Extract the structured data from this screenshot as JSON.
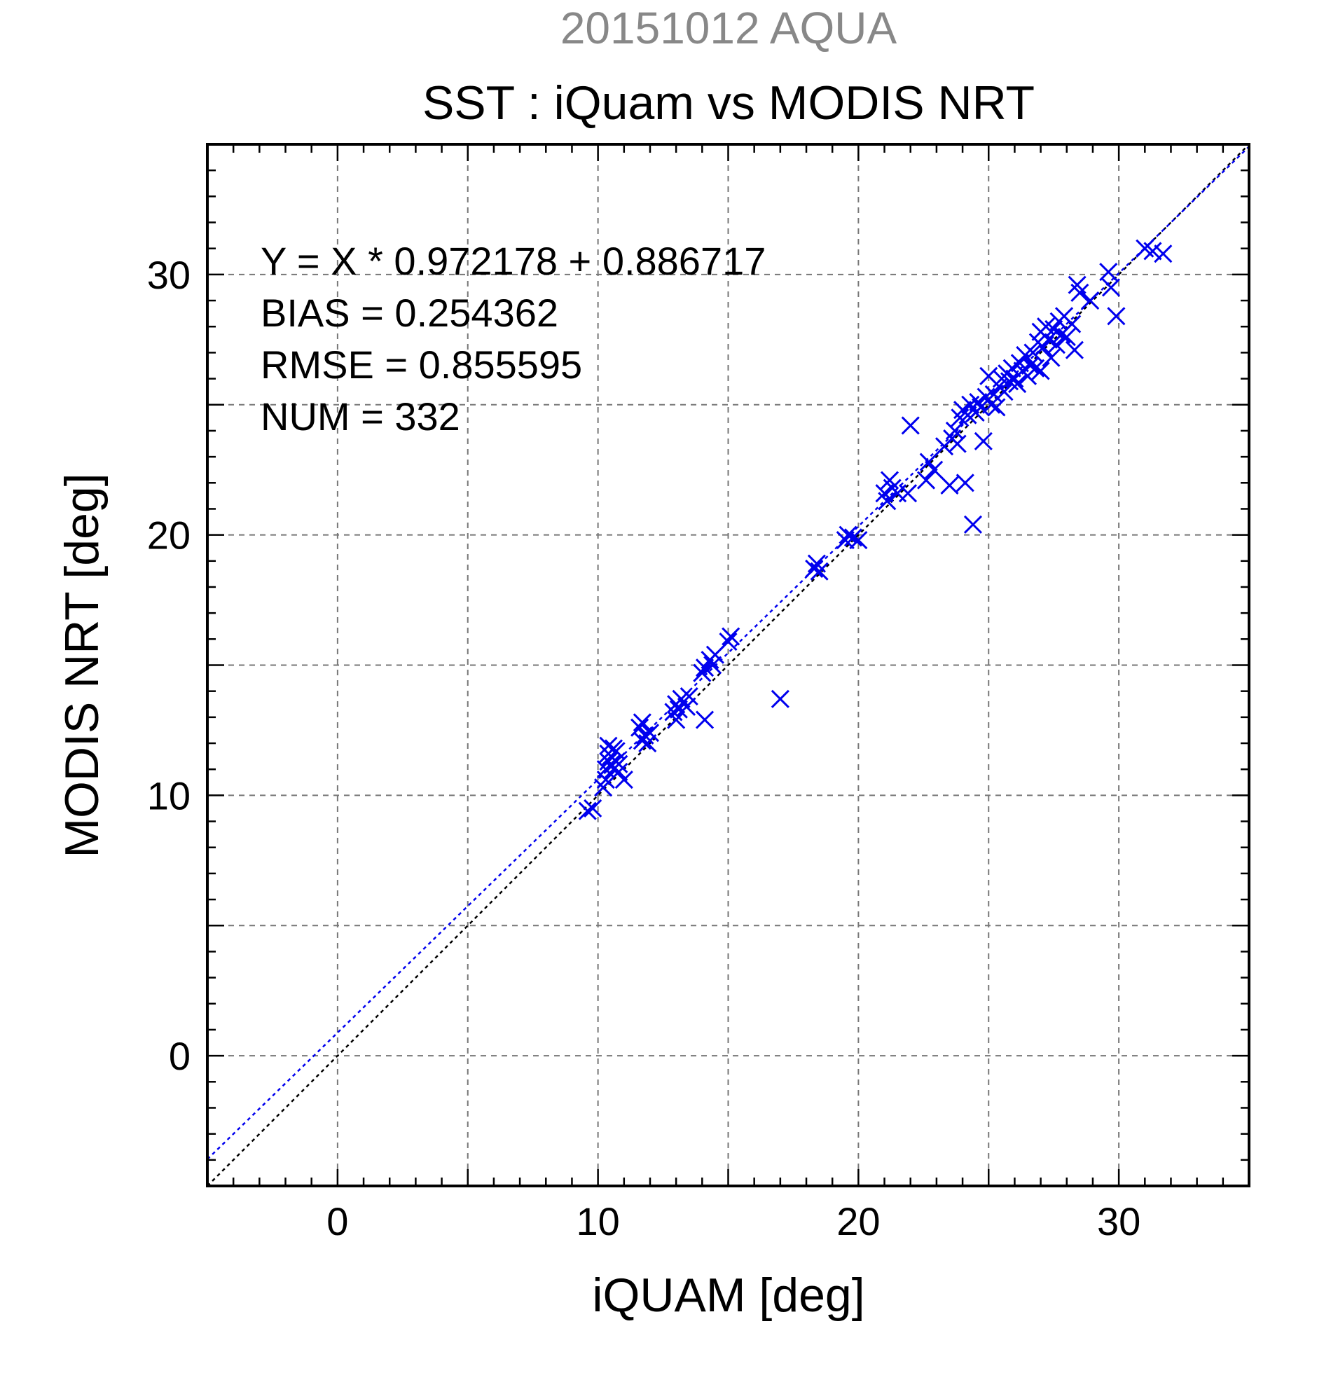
{
  "chart_data": {
    "type": "scatter",
    "date_title": "20151012 AQUA",
    "title": "SST : iQuam vs MODIS NRT",
    "xlabel": "iQUAM [deg]",
    "ylabel": "MODIS NRT [deg]",
    "xlim": [
      -5,
      35
    ],
    "ylim": [
      -5,
      35
    ],
    "xticks": [
      0,
      10,
      20,
      30
    ],
    "yticks": [
      0,
      10,
      20,
      30
    ],
    "grid": true,
    "stats": [
      "Y = X * 0.972178 + 0.886717",
      "BIAS = 0.254362",
      "RMSE = 0.855595",
      "NUM = 332"
    ],
    "fit": {
      "slope": 0.972178,
      "intercept": 0.886717
    },
    "colors": {
      "points": "#0000ee",
      "fit_line": "#0000ee",
      "one_to_one": "#000000",
      "date_title": "#888888"
    },
    "points": [
      [
        9.6,
        9.4
      ],
      [
        9.8,
        9.5
      ],
      [
        10.2,
        10.3
      ],
      [
        10.3,
        10.6
      ],
      [
        10.3,
        11.0
      ],
      [
        10.4,
        11.3
      ],
      [
        10.4,
        11.6
      ],
      [
        10.4,
        11.9
      ],
      [
        10.5,
        11.2
      ],
      [
        10.5,
        11.5
      ],
      [
        10.6,
        11.8
      ],
      [
        10.6,
        11.0
      ],
      [
        10.7,
        11.3
      ],
      [
        10.7,
        11.7
      ],
      [
        10.8,
        10.9
      ],
      [
        10.8,
        11.2
      ],
      [
        11.0,
        10.6
      ],
      [
        11.6,
        12.6
      ],
      [
        11.7,
        12.8
      ],
      [
        11.7,
        12.1
      ],
      [
        11.8,
        12.3
      ],
      [
        11.9,
        12.0
      ],
      [
        12.0,
        12.4
      ],
      [
        12.9,
        13.2
      ],
      [
        13.0,
        13.5
      ],
      [
        13.0,
        12.9
      ],
      [
        13.1,
        13.3
      ],
      [
        13.2,
        13.7
      ],
      [
        13.4,
        13.4
      ],
      [
        13.5,
        13.8
      ],
      [
        14.0,
        14.7
      ],
      [
        14.1,
        14.9
      ],
      [
        14.1,
        12.9
      ],
      [
        14.3,
        15.2
      ],
      [
        14.4,
        15.0
      ],
      [
        14.5,
        15.4
      ],
      [
        15.0,
        15.9
      ],
      [
        15.1,
        16.1
      ],
      [
        17.0,
        13.7
      ],
      [
        18.3,
        18.7
      ],
      [
        18.4,
        18.9
      ],
      [
        18.5,
        18.6
      ],
      [
        19.5,
        19.8
      ],
      [
        19.6,
        20.0
      ],
      [
        19.8,
        19.9
      ],
      [
        20.0,
        19.8
      ],
      [
        21.0,
        21.6
      ],
      [
        21.1,
        21.3
      ],
      [
        21.2,
        22.1
      ],
      [
        21.3,
        21.8
      ],
      [
        21.5,
        21.6
      ],
      [
        21.9,
        21.6
      ],
      [
        22.0,
        24.2
      ],
      [
        22.6,
        22.1
      ],
      [
        22.7,
        22.8
      ],
      [
        22.9,
        22.5
      ],
      [
        23.3,
        23.4
      ],
      [
        23.5,
        21.9
      ],
      [
        23.6,
        23.7
      ],
      [
        23.7,
        24.0
      ],
      [
        23.8,
        23.5
      ],
      [
        23.9,
        24.5
      ],
      [
        24.0,
        24.8
      ],
      [
        24.1,
        22.0
      ],
      [
        24.2,
        24.6
      ],
      [
        24.3,
        25.0
      ],
      [
        24.4,
        20.4
      ],
      [
        24.5,
        24.7
      ],
      [
        24.6,
        25.1
      ],
      [
        24.7,
        24.9
      ],
      [
        24.8,
        23.6
      ],
      [
        24.9,
        25.3
      ],
      [
        25.0,
        26.1
      ],
      [
        25.1,
        25.0
      ],
      [
        25.2,
        25.4
      ],
      [
        25.3,
        24.9
      ],
      [
        25.4,
        25.7
      ],
      [
        25.5,
        26.0
      ],
      [
        25.6,
        25.5
      ],
      [
        25.7,
        26.2
      ],
      [
        25.8,
        25.9
      ],
      [
        25.9,
        26.4
      ],
      [
        26.0,
        26.0
      ],
      [
        26.1,
        25.8
      ],
      [
        26.2,
        26.6
      ],
      [
        26.3,
        26.3
      ],
      [
        26.4,
        26.9
      ],
      [
        26.5,
        26.1
      ],
      [
        26.6,
        26.5
      ],
      [
        26.7,
        27.0
      ],
      [
        26.8,
        26.4
      ],
      [
        26.9,
        27.4
      ],
      [
        27.0,
        27.8
      ],
      [
        27.0,
        26.3
      ],
      [
        27.1,
        27.2
      ],
      [
        27.2,
        28.0
      ],
      [
        27.3,
        27.5
      ],
      [
        27.4,
        26.8
      ],
      [
        27.5,
        27.9
      ],
      [
        27.6,
        27.3
      ],
      [
        27.7,
        28.2
      ],
      [
        27.8,
        27.7
      ],
      [
        27.9,
        28.4
      ],
      [
        28.0,
        27.6
      ],
      [
        28.2,
        28.1
      ],
      [
        28.3,
        27.1
      ],
      [
        28.4,
        29.6
      ],
      [
        28.5,
        29.3
      ],
      [
        28.9,
        29.0
      ],
      [
        29.6,
        30.1
      ],
      [
        29.7,
        29.5
      ],
      [
        29.9,
        28.4
      ],
      [
        31.0,
        31.0
      ],
      [
        31.3,
        30.9
      ],
      [
        31.7,
        30.8
      ]
    ]
  }
}
